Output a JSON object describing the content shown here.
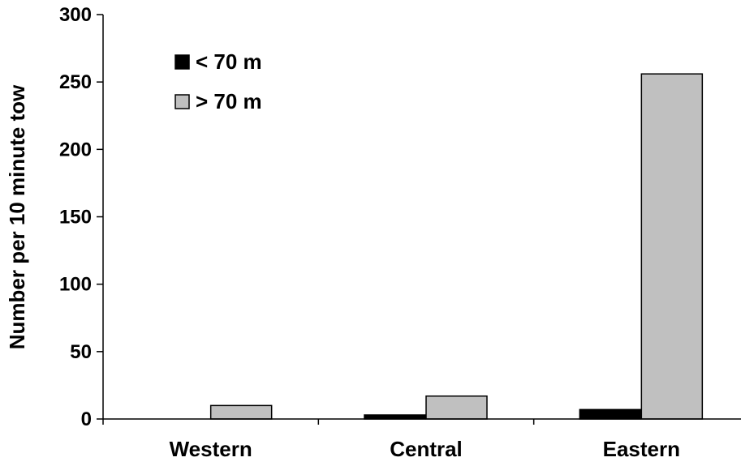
{
  "chart_data": {
    "type": "bar",
    "title": "",
    "xlabel": "",
    "ylabel": "Number per 10 minute tow",
    "categories": [
      "Western",
      "Central",
      "Eastern"
    ],
    "series": [
      {
        "name": "< 70 m",
        "values": [
          0,
          3,
          7
        ],
        "color": "#000000"
      },
      {
        "name": "> 70 m",
        "values": [
          10,
          17,
          256
        ],
        "color": "#c0c0c0"
      }
    ],
    "ylim": [
      0,
      300
    ],
    "yticks": [
      0,
      50,
      100,
      150,
      200,
      250,
      300
    ],
    "grid": false,
    "legend_position": "top-left"
  }
}
